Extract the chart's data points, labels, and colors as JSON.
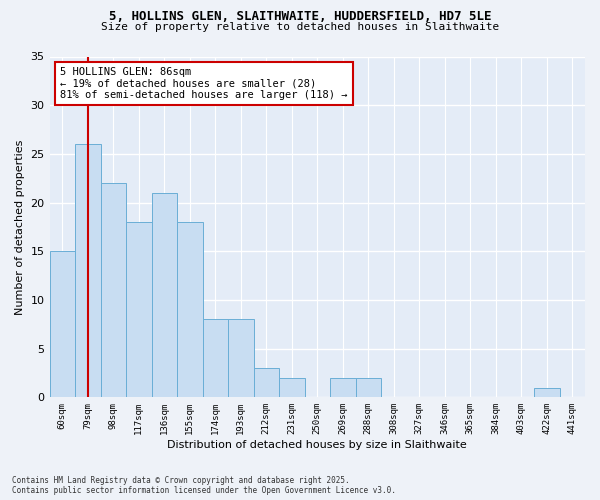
{
  "title_line1": "5, HOLLINS GLEN, SLAITHWAITE, HUDDERSFIELD, HD7 5LE",
  "title_line2": "Size of property relative to detached houses in Slaithwaite",
  "xlabel": "Distribution of detached houses by size in Slaithwaite",
  "ylabel": "Number of detached properties",
  "categories": [
    "60sqm",
    "79sqm",
    "98sqm",
    "117sqm",
    "136sqm",
    "155sqm",
    "174sqm",
    "193sqm",
    "212sqm",
    "231sqm",
    "250sqm",
    "269sqm",
    "288sqm",
    "308sqm",
    "327sqm",
    "346sqm",
    "365sqm",
    "384sqm",
    "403sqm",
    "422sqm",
    "441sqm"
  ],
  "values": [
    15,
    26,
    22,
    18,
    21,
    18,
    8,
    8,
    3,
    2,
    0,
    2,
    2,
    0,
    0,
    0,
    0,
    0,
    0,
    1,
    0
  ],
  "bar_color": "#c8ddf2",
  "bar_edge_color": "#6aaed6",
  "ylim": [
    0,
    35
  ],
  "yticks": [
    0,
    5,
    10,
    15,
    20,
    25,
    30,
    35
  ],
  "vline_x": 1.0,
  "vline_color": "#cc0000",
  "annotation_text": "5 HOLLINS GLEN: 86sqm\n← 19% of detached houses are smaller (28)\n81% of semi-detached houses are larger (118) →",
  "annotation_box_color": "#ffffff",
  "annotation_box_edge": "#cc0000",
  "footer_text": "Contains HM Land Registry data © Crown copyright and database right 2025.\nContains public sector information licensed under the Open Government Licence v3.0.",
  "bg_color": "#eef2f8",
  "plot_bg_color": "#e4ecf7",
  "grid_color": "#ffffff"
}
